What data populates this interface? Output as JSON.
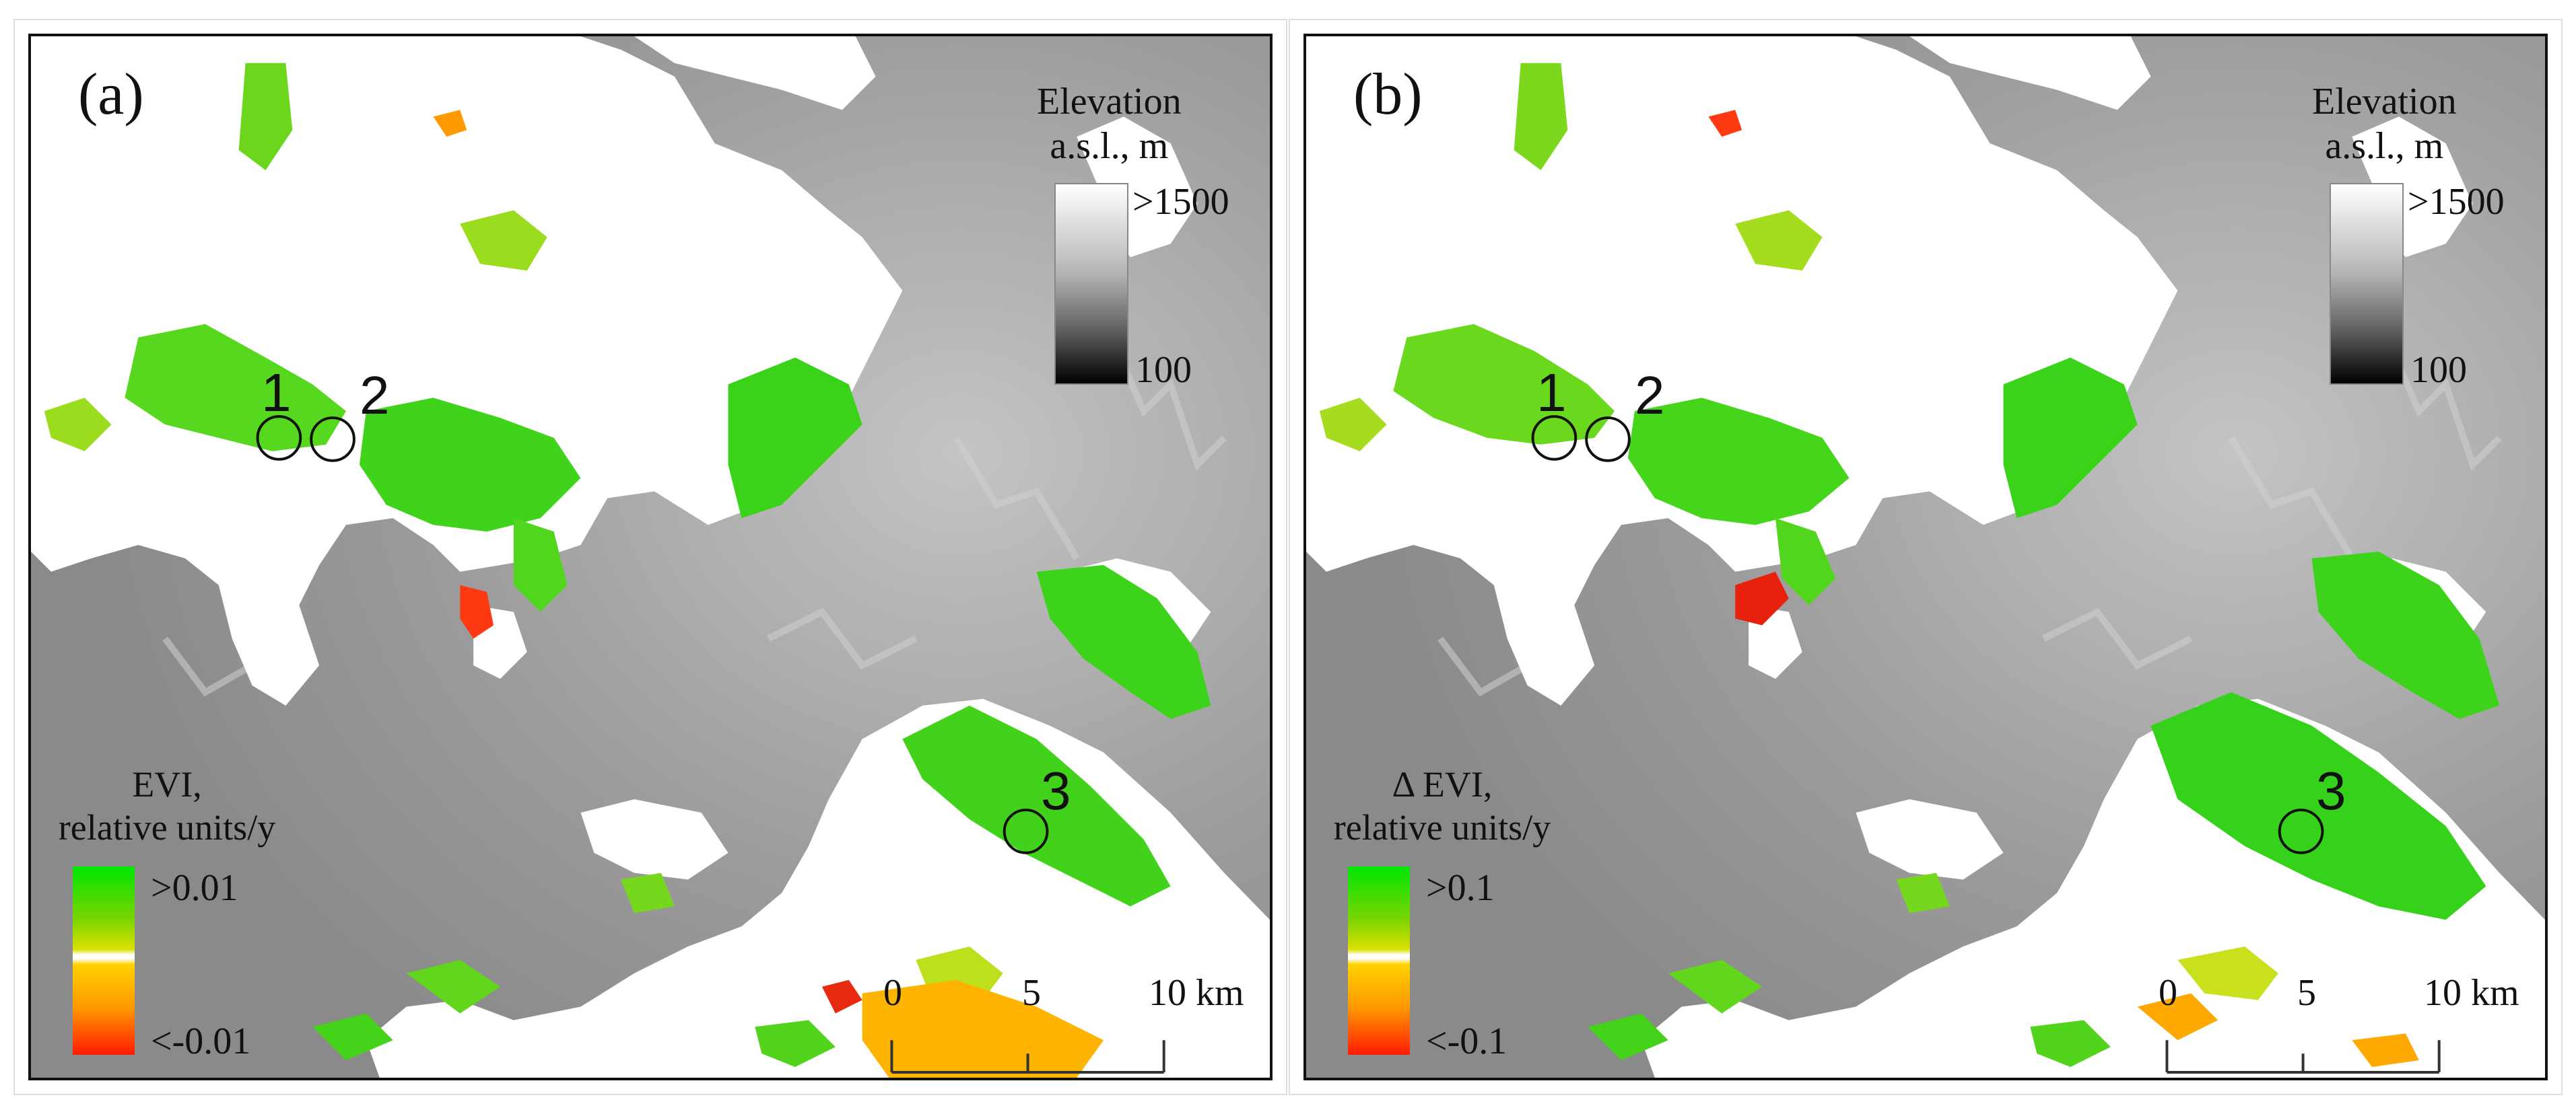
{
  "panels": [
    {
      "label": "(a)",
      "elevation_legend": {
        "title_line1": "Elevation",
        "title_line2": "a.s.l., m",
        "max_label": ">1500",
        "min_label": "100"
      },
      "evi_legend": {
        "title_line1": "EVI,",
        "title_line2": "relative units/y",
        "max_label": ">0.01",
        "min_label": "<-0.01"
      },
      "sites": [
        "1",
        "2",
        "3"
      ],
      "scale_bar": {
        "labels": [
          "0",
          "5",
          "10 km"
        ]
      }
    },
    {
      "label": "(b)",
      "elevation_legend": {
        "title_line1": "Elevation",
        "title_line2": "a.s.l., m",
        "max_label": ">1500",
        "min_label": "100"
      },
      "evi_legend": {
        "title_line1": "Δ EVI,",
        "title_line2": "relative units/y",
        "max_label": ">0.1",
        "min_label": "<-0.1"
      },
      "sites": [
        "1",
        "2",
        "3"
      ],
      "scale_bar": {
        "labels": [
          "0",
          "5",
          "10 km"
        ]
      }
    }
  ],
  "colors": {
    "terrain_gray": "#9a9a9a",
    "lowland_white": "#ffffff",
    "trend_positive": "#33d11a",
    "trend_weak": "#b9df1c",
    "trend_negative": "#ff9a00",
    "trend_strong_negative": "#e83010"
  }
}
